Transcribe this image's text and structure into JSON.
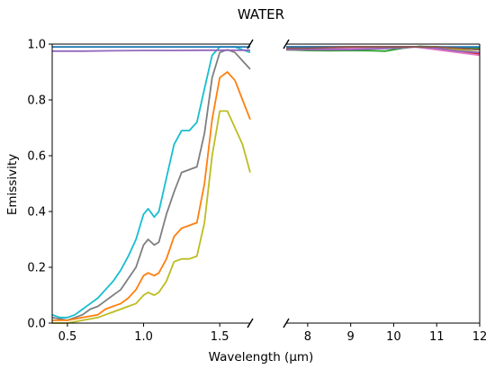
{
  "chart_data": {
    "type": "line",
    "title": "WATER",
    "xlabel": "Wavelength (μm)",
    "ylabel": "Emissivity",
    "ylim": [
      0,
      1
    ],
    "yticks": [
      "0.0",
      "0.2",
      "0.4",
      "0.6",
      "0.8",
      "1.0"
    ],
    "broken_x_axis": true,
    "grid": false,
    "panels": [
      {
        "name": "left",
        "xlim": [
          0.4,
          1.7
        ],
        "xticks": [
          "0.5",
          "1.0",
          "1.5"
        ]
      },
      {
        "name": "right",
        "xlim": [
          7.5,
          12
        ],
        "xticks": [
          "8",
          "9",
          "10",
          "11",
          "12"
        ]
      }
    ],
    "series": [
      {
        "color": "#17becf",
        "left": [
          [
            0.4,
            0.03
          ],
          [
            0.45,
            0.02
          ],
          [
            0.5,
            0.02
          ],
          [
            0.55,
            0.03
          ],
          [
            0.6,
            0.05
          ],
          [
            0.65,
            0.07
          ],
          [
            0.7,
            0.09
          ],
          [
            0.75,
            0.12
          ],
          [
            0.8,
            0.15
          ],
          [
            0.85,
            0.19
          ],
          [
            0.9,
            0.24
          ],
          [
            0.95,
            0.3
          ],
          [
            1.0,
            0.39
          ],
          [
            1.03,
            0.41
          ],
          [
            1.07,
            0.38
          ],
          [
            1.1,
            0.4
          ],
          [
            1.15,
            0.52
          ],
          [
            1.2,
            0.64
          ],
          [
            1.25,
            0.69
          ],
          [
            1.3,
            0.69
          ],
          [
            1.35,
            0.72
          ],
          [
            1.4,
            0.84
          ],
          [
            1.45,
            0.96
          ],
          [
            1.5,
            0.99
          ],
          [
            1.55,
            0.99
          ],
          [
            1.6,
            0.99
          ],
          [
            1.65,
            0.98
          ],
          [
            1.7,
            0.97
          ]
        ],
        "right": [
          [
            7.5,
            0.99
          ],
          [
            8,
            0.99
          ],
          [
            9,
            0.99
          ],
          [
            10,
            0.99
          ],
          [
            10.5,
            0.99
          ],
          [
            11,
            0.99
          ],
          [
            12,
            0.98
          ]
        ]
      },
      {
        "color": "#7f7f7f",
        "left": [
          [
            0.4,
            0.02
          ],
          [
            0.5,
            0.01
          ],
          [
            0.55,
            0.02
          ],
          [
            0.6,
            0.03
          ],
          [
            0.65,
            0.05
          ],
          [
            0.7,
            0.06
          ],
          [
            0.75,
            0.08
          ],
          [
            0.8,
            0.1
          ],
          [
            0.85,
            0.12
          ],
          [
            0.9,
            0.16
          ],
          [
            0.95,
            0.2
          ],
          [
            1.0,
            0.28
          ],
          [
            1.03,
            0.3
          ],
          [
            1.07,
            0.28
          ],
          [
            1.1,
            0.29
          ],
          [
            1.15,
            0.39
          ],
          [
            1.2,
            0.47
          ],
          [
            1.25,
            0.54
          ],
          [
            1.3,
            0.55
          ],
          [
            1.35,
            0.56
          ],
          [
            1.4,
            0.68
          ],
          [
            1.45,
            0.88
          ],
          [
            1.5,
            0.97
          ],
          [
            1.55,
            0.98
          ],
          [
            1.6,
            0.97
          ],
          [
            1.65,
            0.94
          ],
          [
            1.7,
            0.91
          ]
        ],
        "right": [
          [
            7.5,
            0.98
          ],
          [
            8,
            0.98
          ],
          [
            9,
            0.98
          ],
          [
            10,
            0.99
          ],
          [
            10.5,
            0.99
          ],
          [
            11,
            0.99
          ],
          [
            12,
            0.97
          ]
        ]
      },
      {
        "color": "#ff7f0e",
        "left": [
          [
            0.4,
            0.01
          ],
          [
            0.5,
            0.01
          ],
          [
            0.6,
            0.02
          ],
          [
            0.7,
            0.03
          ],
          [
            0.75,
            0.05
          ],
          [
            0.8,
            0.06
          ],
          [
            0.85,
            0.07
          ],
          [
            0.9,
            0.09
          ],
          [
            0.95,
            0.12
          ],
          [
            1.0,
            0.17
          ],
          [
            1.03,
            0.18
          ],
          [
            1.07,
            0.17
          ],
          [
            1.1,
            0.18
          ],
          [
            1.15,
            0.23
          ],
          [
            1.2,
            0.31
          ],
          [
            1.25,
            0.34
          ],
          [
            1.3,
            0.35
          ],
          [
            1.35,
            0.36
          ],
          [
            1.4,
            0.5
          ],
          [
            1.45,
            0.73
          ],
          [
            1.5,
            0.88
          ],
          [
            1.55,
            0.9
          ],
          [
            1.6,
            0.87
          ],
          [
            1.65,
            0.8
          ],
          [
            1.7,
            0.73
          ]
        ],
        "right": [
          [
            7.5,
            0.98
          ],
          [
            8,
            0.98
          ],
          [
            9,
            0.99
          ],
          [
            10,
            0.99
          ],
          [
            10.5,
            0.99
          ],
          [
            11,
            0.99
          ],
          [
            12,
            0.96
          ]
        ]
      },
      {
        "color": "#bcbd22",
        "left": [
          [
            0.4,
            0.0
          ],
          [
            0.5,
            0.0
          ],
          [
            0.6,
            0.01
          ],
          [
            0.7,
            0.02
          ],
          [
            0.75,
            0.03
          ],
          [
            0.8,
            0.04
          ],
          [
            0.85,
            0.05
          ],
          [
            0.9,
            0.06
          ],
          [
            0.95,
            0.07
          ],
          [
            1.0,
            0.1
          ],
          [
            1.03,
            0.11
          ],
          [
            1.07,
            0.1
          ],
          [
            1.1,
            0.11
          ],
          [
            1.15,
            0.15
          ],
          [
            1.2,
            0.22
          ],
          [
            1.25,
            0.23
          ],
          [
            1.3,
            0.23
          ],
          [
            1.35,
            0.24
          ],
          [
            1.4,
            0.36
          ],
          [
            1.45,
            0.6
          ],
          [
            1.5,
            0.76
          ],
          [
            1.55,
            0.76
          ],
          [
            1.6,
            0.7
          ],
          [
            1.65,
            0.64
          ],
          [
            1.7,
            0.54
          ]
        ],
        "right": [
          [
            7.5,
            0.98
          ],
          [
            8,
            0.99
          ],
          [
            9,
            0.99
          ],
          [
            10,
            0.99
          ],
          [
            10.5,
            0.99
          ],
          [
            11,
            0.99
          ],
          [
            12,
            0.97
          ]
        ]
      },
      {
        "color": "#2ca02c",
        "left": [],
        "right": [
          [
            7.5,
            0.98
          ],
          [
            8,
            0.977
          ],
          [
            8.5,
            0.976
          ],
          [
            9,
            0.977
          ],
          [
            9.5,
            0.976
          ],
          [
            9.8,
            0.975
          ],
          [
            10.2,
            0.985
          ],
          [
            10.6,
            0.992
          ],
          [
            11,
            0.99
          ],
          [
            11.5,
            0.988
          ],
          [
            12,
            0.985
          ]
        ]
      },
      {
        "color": "#d62728",
        "left": [],
        "right": [
          [
            7.5,
            0.99
          ],
          [
            8,
            0.99
          ],
          [
            9,
            0.99
          ],
          [
            10,
            0.99
          ],
          [
            10.5,
            0.99
          ],
          [
            11,
            0.985
          ],
          [
            11.5,
            0.975
          ],
          [
            12,
            0.965
          ]
        ]
      },
      {
        "color": "#e377c2",
        "left": [],
        "right": [
          [
            7.5,
            0.985
          ],
          [
            8,
            0.985
          ],
          [
            9,
            0.985
          ],
          [
            10,
            0.985
          ],
          [
            10.5,
            0.99
          ],
          [
            11,
            0.98
          ],
          [
            11.5,
            0.97
          ],
          [
            12,
            0.96
          ]
        ]
      },
      {
        "color": "#9467bd",
        "left": [
          [
            0.4,
            0.975
          ],
          [
            0.6,
            0.975
          ],
          [
            0.8,
            0.976
          ],
          [
            1.0,
            0.977
          ],
          [
            1.2,
            0.977
          ],
          [
            1.4,
            0.978
          ],
          [
            1.6,
            0.978
          ],
          [
            1.7,
            0.978
          ]
        ],
        "right": [
          [
            7.5,
            0.98
          ],
          [
            8,
            0.98
          ],
          [
            9,
            0.98
          ],
          [
            10,
            0.985
          ],
          [
            10.5,
            0.99
          ],
          [
            11,
            0.985
          ],
          [
            11.5,
            0.975
          ],
          [
            12,
            0.97
          ]
        ]
      },
      {
        "color": "#1f77b4",
        "left": [
          [
            0.4,
            0.99
          ],
          [
            0.6,
            0.99
          ],
          [
            0.8,
            0.99
          ],
          [
            1.0,
            0.99
          ],
          [
            1.2,
            0.99
          ],
          [
            1.4,
            0.99
          ],
          [
            1.6,
            0.99
          ],
          [
            1.7,
            0.99
          ]
        ],
        "right": [
          [
            7.5,
            0.99
          ],
          [
            8,
            0.99
          ],
          [
            9,
            0.99
          ],
          [
            10,
            0.99
          ],
          [
            11,
            0.99
          ],
          [
            12,
            0.99
          ]
        ]
      },
      {
        "color": "#8c564b",
        "left": [],
        "right": [
          [
            7.5,
            0.985
          ],
          [
            8,
            0.985
          ],
          [
            9,
            0.99
          ],
          [
            10,
            0.99
          ],
          [
            10.5,
            0.99
          ],
          [
            11,
            0.99
          ],
          [
            11.5,
            0.985
          ],
          [
            12,
            0.98
          ]
        ]
      }
    ]
  }
}
